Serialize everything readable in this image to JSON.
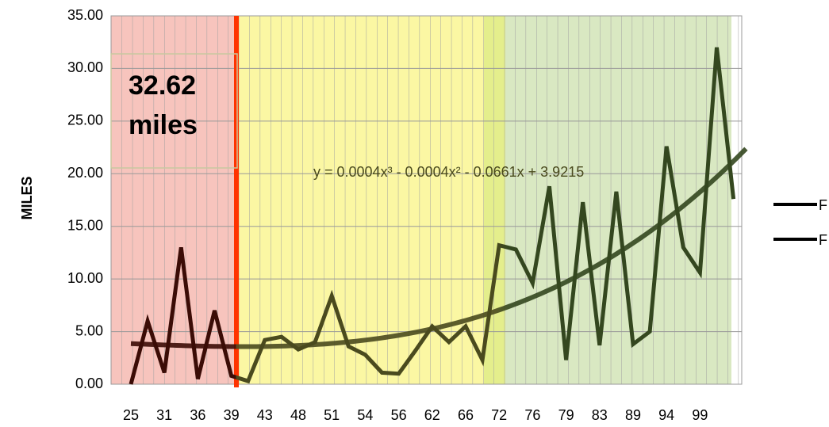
{
  "chart_data": {
    "type": "line",
    "y_label": "MILES",
    "categories": [
      "25",
      null,
      "31",
      null,
      "36",
      null,
      "39",
      null,
      "43",
      null,
      "48",
      null,
      "51",
      null,
      "54",
      null,
      "56",
      null,
      "62",
      null,
      "66",
      null,
      "72",
      null,
      "76",
      null,
      "79",
      null,
      "83",
      null,
      "89",
      null,
      "94",
      null,
      "99",
      null,
      null
    ],
    "series": [
      {
        "name": "F",
        "color": "#3a4a22",
        "values": [
          0,
          6.0,
          1.1,
          13.0,
          0.5,
          7.0,
          0.8,
          0.3,
          4.2,
          4.5,
          3.3,
          4.0,
          8.4,
          3.6,
          2.8,
          1.1,
          1.0,
          3.2,
          5.5,
          4.0,
          5.5,
          2.3,
          13.2,
          12.8,
          9.6,
          18.8,
          2.3,
          17.3,
          3.7,
          18.3,
          3.8,
          5.0,
          22.6,
          13.0,
          10.6,
          32.0,
          17.6
        ]
      },
      {
        "name": "F",
        "color": "#3a4a22",
        "trend_coefficients": [
          0.0004,
          -0.0004,
          -0.0661,
          3.9215
        ],
        "trend_label": "y = 0.0004x³ - 0.0004x² - 0.0661x + 3.9215"
      }
    ],
    "annotation": [
      "32.62",
      "miles"
    ],
    "ylim": [
      0,
      35
    ],
    "yticks": [
      {
        "value": 0,
        "label": "0.00"
      },
      {
        "value": 5,
        "label": "5.00"
      },
      {
        "value": 10,
        "label": "10.00"
      },
      {
        "value": 15,
        "label": "15.00"
      },
      {
        "value": 20,
        "label": "20.00"
      },
      {
        "value": 25,
        "label": "25.00"
      },
      {
        "value": 30,
        "label": "30.00"
      },
      {
        "value": 35,
        "label": "35.00"
      }
    ],
    "grid": true
  }
}
